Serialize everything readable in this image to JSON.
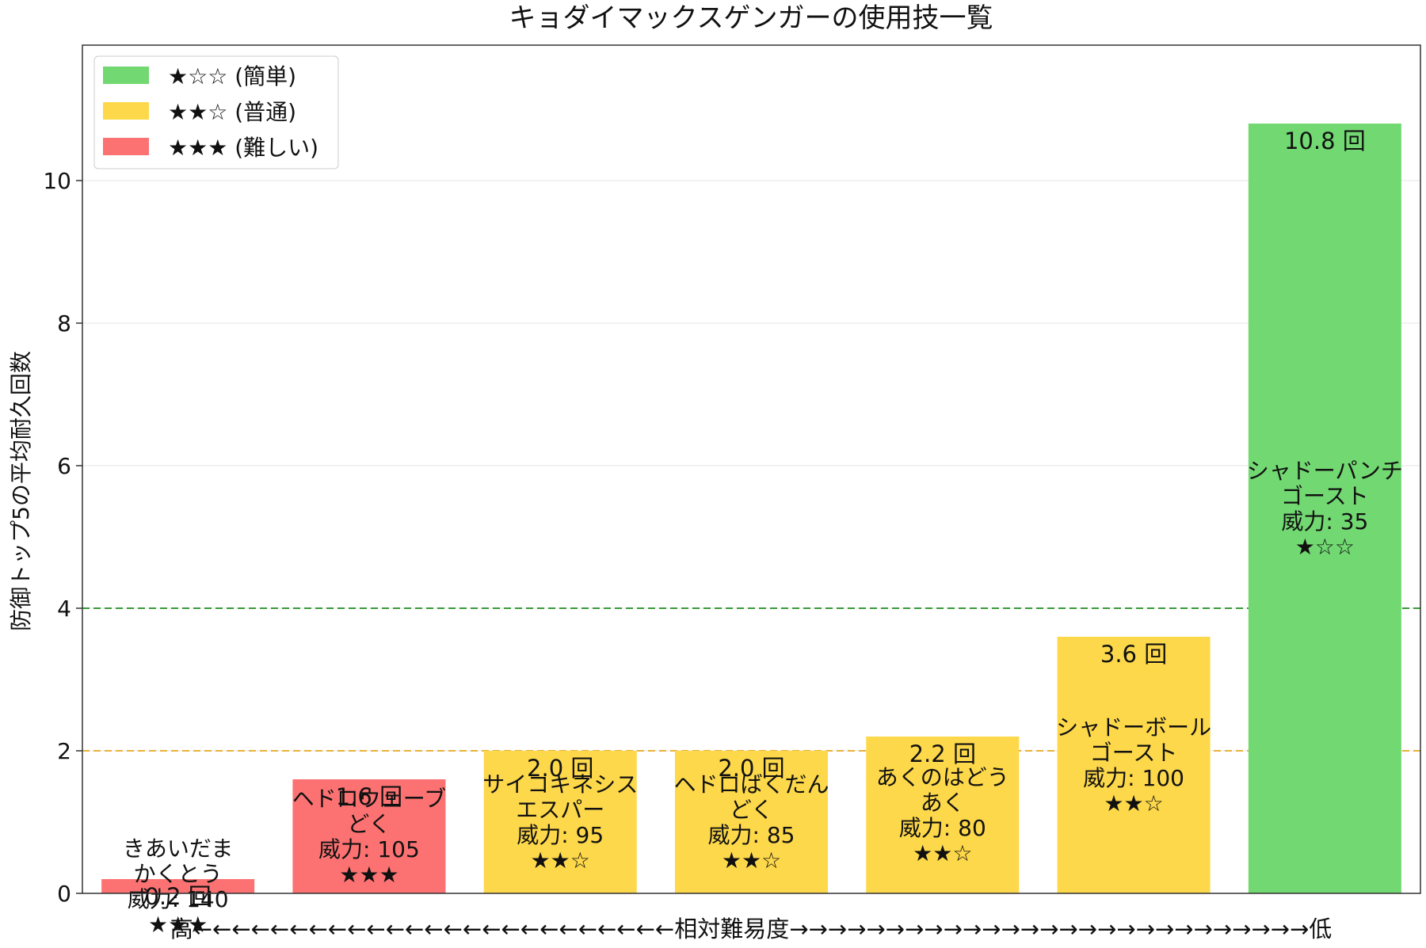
{
  "chart_data": {
    "type": "bar",
    "title": "キョダイマックスゲンガーの使用技一覧",
    "ylabel": "防御トップ5の平均耐久回数",
    "xlabel": "高←←←←←←←←←←←←←←←←←←←←←←←←←相対難易度→→→→→→→→→→→→→→→→→→→→→→→→→→→低",
    "ylim": [
      0,
      11.9
    ],
    "yticks": [
      "0",
      "2",
      "4",
      "6",
      "8",
      "10"
    ],
    "grid": "horizontal",
    "legend_placement": "top-left",
    "value_suffix": " 回",
    "reference_lines": [
      {
        "value": 4,
        "color": "#3a9a3a"
      },
      {
        "value": 2,
        "color": "#e9b23a"
      }
    ],
    "legend": [
      {
        "label": "★☆☆ (簡単)",
        "color": "#72d872"
      },
      {
        "label": "★★☆ (普通)",
        "color": "#fdd84a"
      },
      {
        "label": "★★★ (難しい)",
        "color": "#fc7272"
      }
    ],
    "bars": [
      {
        "name": "きあいだま",
        "type": "かくとう",
        "power": "威力: 140",
        "stars": "★★★",
        "value": 0.2,
        "value_label": "0.2 回",
        "color": "#fc7272"
      },
      {
        "name": "ヘドロウェーブ",
        "type": "どく",
        "power": "威力: 105",
        "stars": "★★★",
        "value": 1.6,
        "value_label": "1.6 回",
        "color": "#fc7272"
      },
      {
        "name": "サイコキネシス",
        "type": "エスパー",
        "power": "威力: 95",
        "stars": "★★☆",
        "value": 2.0,
        "value_label": "2.0 回",
        "color": "#fdd84a"
      },
      {
        "name": "ヘドロばくだん",
        "type": "どく",
        "power": "威力: 85",
        "stars": "★★☆",
        "value": 2.0,
        "value_label": "2.0 回",
        "color": "#fdd84a"
      },
      {
        "name": "あくのはどう",
        "type": "あく",
        "power": "威力: 80",
        "stars": "★★☆",
        "value": 2.2,
        "value_label": "2.2 回",
        "color": "#fdd84a"
      },
      {
        "name": "シャドーボール",
        "type": "ゴースト",
        "power": "威力: 100",
        "stars": "★★☆",
        "value": 3.6,
        "value_label": "3.6 回",
        "color": "#fdd84a"
      },
      {
        "name": "シャドーパンチ",
        "type": "ゴースト",
        "power": "威力: 35",
        "stars": "★☆☆",
        "value": 10.8,
        "value_label": "10.8 回",
        "color": "#72d872"
      }
    ]
  }
}
